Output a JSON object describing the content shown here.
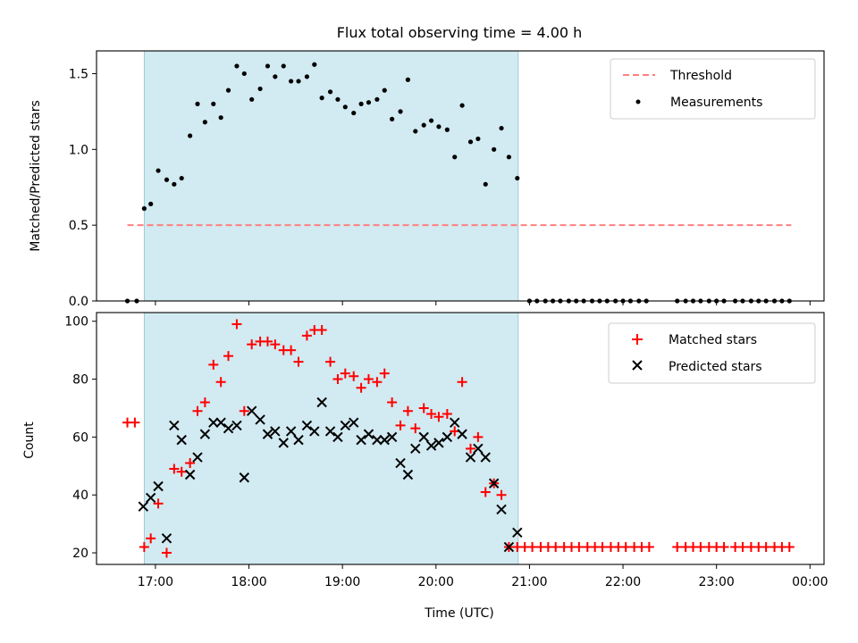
{
  "chart_data": [
    {
      "type": "scatter",
      "title": "Flux total observing time = 4.00 h",
      "xlabel": "",
      "ylabel": "Matched/Predicted stars",
      "xlim": [
        16.37,
        24.15
      ],
      "ylim": [
        0,
        1.65
      ],
      "yticks": [
        0,
        0.5,
        1.0,
        1.5
      ],
      "ytick_labels": [
        "0.0",
        "0.5",
        "1.0",
        "1.5"
      ],
      "shaded_span": [
        16.88,
        20.88
      ],
      "legend": {
        "position": "top-right",
        "entries": [
          "Threshold",
          "Measurements"
        ]
      },
      "threshold": {
        "name": "Threshold",
        "value": 0.5,
        "x_range": [
          16.7,
          23.8
        ],
        "color": "#ff7f7f"
      },
      "series": [
        {
          "name": "Measurements",
          "color": "#000000",
          "points": [
            [
              16.7,
              0
            ],
            [
              16.8,
              0
            ],
            [
              16.88,
              0.61
            ],
            [
              16.95,
              0.64
            ],
            [
              17.03,
              0.86
            ],
            [
              17.12,
              0.8
            ],
            [
              17.2,
              0.77
            ],
            [
              17.28,
              0.81
            ],
            [
              17.37,
              1.09
            ],
            [
              17.45,
              1.3
            ],
            [
              17.53,
              1.18
            ],
            [
              17.62,
              1.3
            ],
            [
              17.7,
              1.21
            ],
            [
              17.78,
              1.39
            ],
            [
              17.87,
              1.55
            ],
            [
              17.95,
              1.5
            ],
            [
              18.03,
              1.33
            ],
            [
              18.12,
              1.4
            ],
            [
              18.2,
              1.55
            ],
            [
              18.28,
              1.48
            ],
            [
              18.37,
              1.55
            ],
            [
              18.45,
              1.45
            ],
            [
              18.53,
              1.45
            ],
            [
              18.62,
              1.48
            ],
            [
              18.7,
              1.56
            ],
            [
              18.78,
              1.34
            ],
            [
              18.87,
              1.38
            ],
            [
              18.95,
              1.33
            ],
            [
              19.03,
              1.28
            ],
            [
              19.12,
              1.24
            ],
            [
              19.2,
              1.3
            ],
            [
              19.28,
              1.31
            ],
            [
              19.37,
              1.33
            ],
            [
              19.45,
              1.39
            ],
            [
              19.53,
              1.2
            ],
            [
              19.62,
              1.25
            ],
            [
              19.7,
              1.46
            ],
            [
              19.78,
              1.12
            ],
            [
              19.87,
              1.16
            ],
            [
              19.95,
              1.19
            ],
            [
              20.03,
              1.15
            ],
            [
              20.12,
              1.13
            ],
            [
              20.2,
              0.95
            ],
            [
              20.28,
              1.29
            ],
            [
              20.37,
              1.05
            ],
            [
              20.45,
              1.07
            ],
            [
              20.53,
              0.77
            ],
            [
              20.62,
              1.0
            ],
            [
              20.7,
              1.14
            ],
            [
              20.78,
              0.95
            ],
            [
              20.87,
              0.81
            ],
            [
              21.0,
              0
            ],
            [
              21.08,
              0
            ],
            [
              21.17,
              0
            ],
            [
              21.25,
              0
            ],
            [
              21.33,
              0
            ],
            [
              21.42,
              0
            ],
            [
              21.5,
              0
            ],
            [
              21.58,
              0
            ],
            [
              21.67,
              0
            ],
            [
              21.75,
              0
            ],
            [
              21.83,
              0
            ],
            [
              21.92,
              0
            ],
            [
              22.0,
              0
            ],
            [
              22.08,
              0
            ],
            [
              22.17,
              0
            ],
            [
              22.25,
              0
            ],
            [
              22.58,
              0
            ],
            [
              22.67,
              0
            ],
            [
              22.75,
              0
            ],
            [
              22.83,
              0
            ],
            [
              22.92,
              0
            ],
            [
              23.0,
              0
            ],
            [
              23.08,
              0
            ],
            [
              23.2,
              0
            ],
            [
              23.28,
              0
            ],
            [
              23.37,
              0
            ],
            [
              23.45,
              0
            ],
            [
              23.53,
              0
            ],
            [
              23.62,
              0
            ],
            [
              23.7,
              0
            ],
            [
              23.78,
              0
            ]
          ]
        }
      ]
    },
    {
      "type": "scatter",
      "title": "",
      "xlabel": "Time (UTC)",
      "ylabel": "Count",
      "xlim": [
        16.37,
        24.15
      ],
      "ylim": [
        16,
        103
      ],
      "yticks": [
        20,
        40,
        60,
        80,
        100
      ],
      "ytick_labels": [
        "20",
        "40",
        "60",
        "80",
        "100"
      ],
      "xticks": [
        17,
        18,
        19,
        20,
        21,
        22,
        23,
        24
      ],
      "xtick_labels": [
        "17:00",
        "18:00",
        "19:00",
        "20:00",
        "21:00",
        "22:00",
        "23:00",
        "00:00"
      ],
      "shaded_span": [
        16.88,
        20.88
      ],
      "legend": {
        "position": "top-right",
        "entries": [
          "Matched stars",
          "Predicted stars"
        ]
      },
      "series": [
        {
          "name": "Matched stars",
          "marker": "+",
          "color": "#ff0000",
          "points": [
            [
              16.7,
              65
            ],
            [
              16.78,
              65
            ],
            [
              16.88,
              22
            ],
            [
              16.95,
              25
            ],
            [
              17.03,
              37
            ],
            [
              17.12,
              20
            ],
            [
              17.2,
              49
            ],
            [
              17.28,
              48
            ],
            [
              17.37,
              51
            ],
            [
              17.45,
              69
            ],
            [
              17.53,
              72
            ],
            [
              17.62,
              85
            ],
            [
              17.7,
              79
            ],
            [
              17.78,
              88
            ],
            [
              17.87,
              99
            ],
            [
              17.95,
              69
            ],
            [
              18.03,
              92
            ],
            [
              18.12,
              93
            ],
            [
              18.2,
              93
            ],
            [
              18.28,
              92
            ],
            [
              18.37,
              90
            ],
            [
              18.45,
              90
            ],
            [
              18.53,
              86
            ],
            [
              18.62,
              95
            ],
            [
              18.7,
              97
            ],
            [
              18.78,
              97
            ],
            [
              18.87,
              86
            ],
            [
              18.95,
              80
            ],
            [
              19.03,
              82
            ],
            [
              19.12,
              81
            ],
            [
              19.2,
              77
            ],
            [
              19.28,
              80
            ],
            [
              19.37,
              79
            ],
            [
              19.45,
              82
            ],
            [
              19.53,
              72
            ],
            [
              19.62,
              64
            ],
            [
              19.7,
              69
            ],
            [
              19.78,
              63
            ],
            [
              19.87,
              70
            ],
            [
              19.95,
              68
            ],
            [
              20.03,
              67
            ],
            [
              20.12,
              68
            ],
            [
              20.2,
              62
            ],
            [
              20.28,
              79
            ],
            [
              20.37,
              56
            ],
            [
              20.45,
              60
            ],
            [
              20.53,
              41
            ],
            [
              20.62,
              44
            ],
            [
              20.7,
              40
            ],
            [
              20.78,
              22
            ],
            [
              20.87,
              22
            ],
            [
              20.95,
              22
            ],
            [
              21.03,
              22
            ],
            [
              21.12,
              22
            ],
            [
              21.2,
              22
            ],
            [
              21.28,
              22
            ],
            [
              21.37,
              22
            ],
            [
              21.45,
              22
            ],
            [
              21.53,
              22
            ],
            [
              21.62,
              22
            ],
            [
              21.7,
              22
            ],
            [
              21.78,
              22
            ],
            [
              21.87,
              22
            ],
            [
              21.95,
              22
            ],
            [
              22.03,
              22
            ],
            [
              22.12,
              22
            ],
            [
              22.2,
              22
            ],
            [
              22.28,
              22
            ],
            [
              22.58,
              22
            ],
            [
              22.67,
              22
            ],
            [
              22.75,
              22
            ],
            [
              22.83,
              22
            ],
            [
              22.92,
              22
            ],
            [
              23.0,
              22
            ],
            [
              23.08,
              22
            ],
            [
              23.2,
              22
            ],
            [
              23.28,
              22
            ],
            [
              23.37,
              22
            ],
            [
              23.45,
              22
            ],
            [
              23.53,
              22
            ],
            [
              23.62,
              22
            ],
            [
              23.7,
              22
            ],
            [
              23.78,
              22
            ]
          ]
        },
        {
          "name": "Predicted stars",
          "marker": "x",
          "color": "#000000",
          "points": [
            [
              16.87,
              36
            ],
            [
              16.95,
              39
            ],
            [
              17.03,
              43
            ],
            [
              17.12,
              25
            ],
            [
              17.2,
              64
            ],
            [
              17.28,
              59
            ],
            [
              17.37,
              47
            ],
            [
              17.45,
              53
            ],
            [
              17.53,
              61
            ],
            [
              17.62,
              65
            ],
            [
              17.7,
              65
            ],
            [
              17.78,
              63
            ],
            [
              17.87,
              64
            ],
            [
              17.95,
              46
            ],
            [
              18.03,
              69
            ],
            [
              18.12,
              66
            ],
            [
              18.2,
              61
            ],
            [
              18.28,
              62
            ],
            [
              18.37,
              58
            ],
            [
              18.45,
              62
            ],
            [
              18.53,
              59
            ],
            [
              18.62,
              64
            ],
            [
              18.7,
              62
            ],
            [
              18.78,
              72
            ],
            [
              18.87,
              62
            ],
            [
              18.95,
              60
            ],
            [
              19.03,
              64
            ],
            [
              19.12,
              65
            ],
            [
              19.2,
              59
            ],
            [
              19.28,
              61
            ],
            [
              19.37,
              59
            ],
            [
              19.45,
              59
            ],
            [
              19.53,
              60
            ],
            [
              19.62,
              51
            ],
            [
              19.7,
              47
            ],
            [
              19.78,
              56
            ],
            [
              19.87,
              60
            ],
            [
              19.95,
              57
            ],
            [
              20.03,
              58
            ],
            [
              20.12,
              60
            ],
            [
              20.2,
              65
            ],
            [
              20.28,
              61
            ],
            [
              20.37,
              53
            ],
            [
              20.45,
              56
            ],
            [
              20.53,
              53
            ],
            [
              20.62,
              44
            ],
            [
              20.7,
              35
            ],
            [
              20.78,
              22
            ],
            [
              20.87,
              27
            ]
          ]
        }
      ]
    }
  ]
}
